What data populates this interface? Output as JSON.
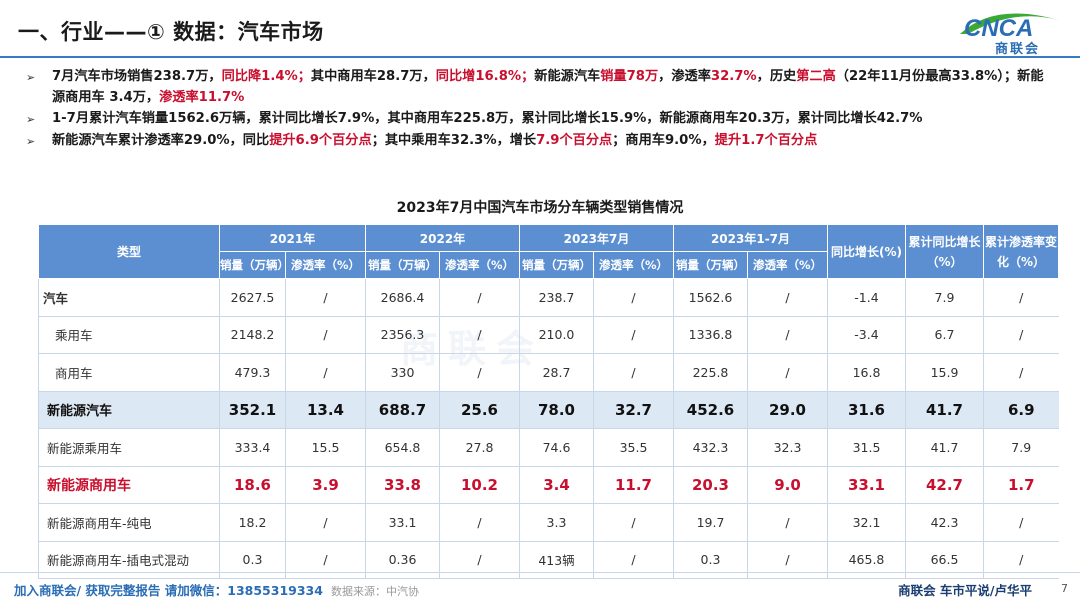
{
  "header": {
    "title": "一、行业——① 数据：汽车市场",
    "logo_text": "商联会",
    "logo_letters": "CNCA"
  },
  "bullets": [
    {
      "parts": [
        {
          "t": "7月汽车市场销售238.7万，"
        },
        {
          "t": "同比降1.4%；",
          "red": true
        },
        {
          "t": "其中商用车28.7万，"
        },
        {
          "t": "同比增16.8%；",
          "red": true
        },
        {
          "t": "新能源汽车"
        },
        {
          "t": "销量78万",
          "red": true
        },
        {
          "t": "，渗透率"
        },
        {
          "t": "32.7%",
          "red": true
        },
        {
          "t": "，历史"
        },
        {
          "t": "第二高",
          "red": true
        },
        {
          "t": "（22年11月份最高33.8%）；新能源商用车 3.4万，"
        },
        {
          "t": "渗透率11.7%",
          "red": true
        }
      ]
    },
    {
      "parts": [
        {
          "t": "1-7月累计汽车销量1562.6万辆，累计同比增长7.9%，其中商用车225.8万，累计同比增长15.9%，新能源商用车20.3万，累计同比增长42.7%"
        }
      ]
    },
    {
      "parts": [
        {
          "t": "新能源汽车累计渗透率29.0%，同比"
        },
        {
          "t": "提升6.9个百分点",
          "red": true
        },
        {
          "t": "；其中乘用车32.3%，增长"
        },
        {
          "t": "7.9个百分点",
          "red": true
        },
        {
          "t": "；商用车9.0%，"
        },
        {
          "t": "提升1.7个百分点",
          "red": true
        }
      ]
    }
  ],
  "table": {
    "title": "2023年7月中国汽车市场分车辆类型销售情况",
    "type_header": "类型",
    "groups": [
      "2021年",
      "2022年",
      "2023年7月",
      "2023年1-7月"
    ],
    "sub_headers": [
      "销量（万辆）",
      "渗透率（%）"
    ],
    "extra_headers": [
      "同比增长(%)",
      "累计同比增长（%）",
      "累计渗透率变化（%）"
    ],
    "rows": [
      {
        "name": "汽车",
        "style": "top",
        "cells": [
          "2627.5",
          "/",
          "2686.4",
          "/",
          "238.7",
          "/",
          "1562.6",
          "/",
          "-1.4",
          "7.9",
          "/"
        ]
      },
      {
        "name": "乘用车",
        "style": "lvl1",
        "cells": [
          "2148.2",
          "/",
          "2356.3",
          "/",
          "210.0",
          "/",
          "1336.8",
          "/",
          "-3.4",
          "6.7",
          "/"
        ]
      },
      {
        "name": "商用车",
        "style": "lvl1",
        "cells": [
          "479.3",
          "/",
          "330",
          "/",
          "28.7",
          "/",
          "225.8",
          "/",
          "16.8",
          "15.9",
          "/"
        ]
      },
      {
        "name": "新能源汽车",
        "style": "hl",
        "cells": [
          "352.1",
          "13.4",
          "688.7",
          "25.6",
          "78.0",
          "32.7",
          "452.6",
          "29.0",
          "31.6",
          "41.7",
          "6.9"
        ]
      },
      {
        "name": "新能源乘用车",
        "style": "plain",
        "cells": [
          "333.4",
          "15.5",
          "654.8",
          "27.8",
          "74.6",
          "35.5",
          "432.3",
          "32.3",
          "31.5",
          "41.7",
          "7.9"
        ]
      },
      {
        "name": "新能源商用车",
        "style": "red-row",
        "cells": [
          "18.6",
          "3.9",
          "33.8",
          "10.2",
          "3.4",
          "11.7",
          "20.3",
          "9.0",
          "33.1",
          "42.7",
          "1.7"
        ]
      },
      {
        "name": "新能源商用车-纯电",
        "style": "plain",
        "cells": [
          "18.2",
          "/",
          "33.1",
          "/",
          "3.3",
          "/",
          "19.7",
          "/",
          "32.1",
          "42.3",
          "/"
        ]
      },
      {
        "name": "新能源商用车-插电式混动",
        "style": "plain",
        "cells": [
          "0.3",
          "/",
          "0.36",
          "/",
          "413辆",
          "/",
          "0.3",
          "/",
          "465.8",
          "66.5",
          "/"
        ]
      }
    ]
  },
  "footer": {
    "left": "加入商联会/ 获取完整报告  请加微信：13855319334",
    "source": "数据来源：中汽协",
    "right": "商联会  车市平说/卢华平",
    "page": "7"
  },
  "colors": {
    "accent_blue": "#5b8fd1",
    "highlight_red": "#c8102e",
    "logo_green": "#3aa935"
  }
}
